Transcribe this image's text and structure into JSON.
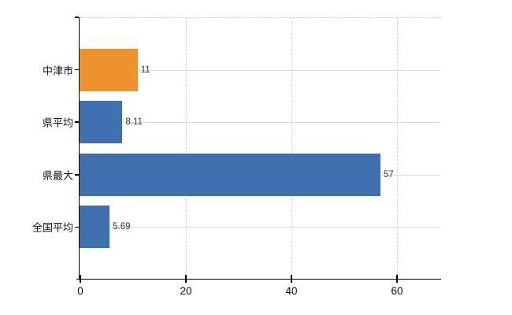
{
  "chart_data": {
    "type": "bar",
    "orientation": "horizontal",
    "title": "",
    "categories": [
      "中津市",
      "県平均",
      "県最大",
      "全国平均"
    ],
    "values": [
      11,
      8.11,
      57,
      5.69
    ],
    "value_labels": [
      "11",
      "8.11",
      "57",
      "5.69"
    ],
    "bar_colors": [
      "#EF9230",
      "#3E6FAF",
      "#3E6FAF",
      "#3E6FAF"
    ],
    "x_ticks": [
      0,
      20,
      40,
      60
    ],
    "x_tick_labels": [
      "0",
      "20",
      "40",
      "60"
    ],
    "xlim": [
      0,
      68.5
    ],
    "legend": "none",
    "grid": {
      "vertical_style": "dashed",
      "horizontal_style": "solid"
    },
    "colors": {
      "highlight_bar": "#EF9230",
      "default_bar": "#3E6FAF",
      "axis": "#000000",
      "gridline_horizontal": "#dcdcdc",
      "gridline_vertical": "#d2d2d2",
      "plot_top_border": "#c9c9c9",
      "category_text": "#111111",
      "value_text": "#333333",
      "background": "#ffffff"
    }
  }
}
